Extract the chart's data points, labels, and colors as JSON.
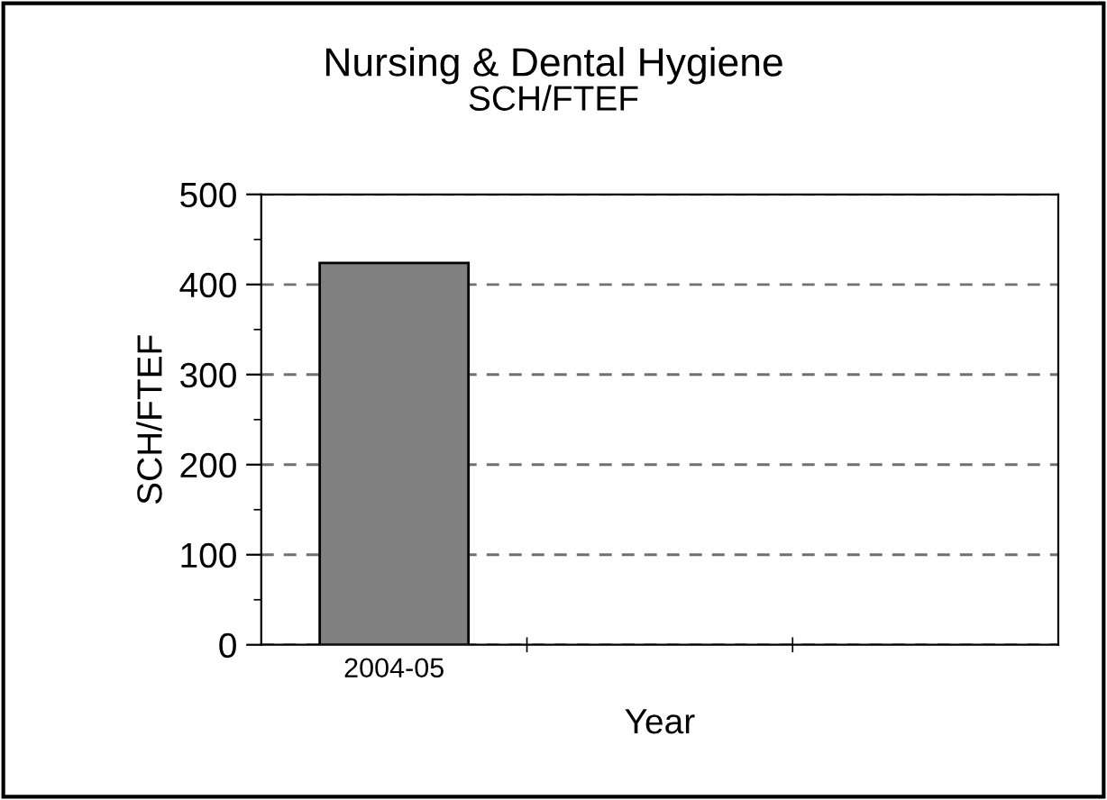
{
  "chart_data": {
    "type": "bar",
    "title": "Nursing & Dental Hygiene",
    "subtitle": "SCH/FTEF",
    "xlabel": "Year",
    "ylabel": "SCH/FTEF",
    "categories": [
      "2004-05",
      null,
      null
    ],
    "values": [
      424,
      null,
      null
    ],
    "color": "#808080",
    "ylim": [
      0,
      500
    ],
    "yticks": [
      0,
      100,
      200,
      300,
      400,
      500
    ],
    "grid": "y"
  }
}
